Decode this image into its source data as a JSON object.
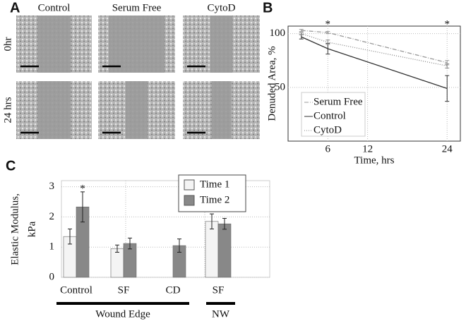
{
  "panels": [
    "A",
    "B",
    "C"
  ],
  "images": {
    "columns": [
      "Control",
      "Serum Free",
      "CytoD"
    ],
    "rows": [
      "0hr",
      "24 hrs"
    ]
  },
  "chart_data": [
    {
      "type": "line",
      "xlabel": "Time, hrs",
      "ylabel": "Denuded Area, %",
      "x": [
        2,
        6,
        24
      ],
      "xlim": [
        0,
        26
      ],
      "xticks": [
        6,
        12,
        24
      ],
      "ylim": [
        0,
        107
      ],
      "yticks": [
        50,
        100
      ],
      "grid": true,
      "legend": "lower left",
      "series": [
        {
          "name": "Serum Free",
          "color": "#999999",
          "dash": "6,2,1,2",
          "values": [
            103,
            101,
            73
          ],
          "errors": [
            1,
            1,
            2
          ]
        },
        {
          "name": "Control",
          "color": "#333333",
          "dash": "",
          "values": [
            97,
            86,
            49
          ],
          "errors": [
            2,
            5,
            12
          ]
        },
        {
          "name": "CytoD",
          "color": "#888888",
          "dash": "1,2",
          "values": [
            100,
            92,
            70
          ],
          "errors": [
            1,
            2,
            2
          ]
        }
      ],
      "annotations": [
        {
          "text": "*",
          "x": 6
        },
        {
          "text": "*",
          "x": 24
        }
      ]
    },
    {
      "type": "bar",
      "ylabel": [
        "Elastic Modulus,",
        "kPa"
      ],
      "categories": [
        "Control",
        "SF",
        "CD",
        "SF"
      ],
      "ylim": [
        0,
        3.2
      ],
      "yticks": [
        0,
        1,
        2,
        3
      ],
      "grid": true,
      "legend": "upper right",
      "series": [
        {
          "name": "Time 1",
          "color": "#f4f4f4",
          "values": [
            1.35,
            0.95,
            null,
            1.85
          ],
          "errors": [
            0.25,
            0.12,
            null,
            0.25
          ]
        },
        {
          "name": "Time 2",
          "color": "#888888",
          "values": [
            2.33,
            1.12,
            1.05,
            1.77
          ],
          "errors": [
            0.5,
            0.18,
            0.22,
            0.18
          ]
        }
      ],
      "groups": [
        "Wound Edge",
        "NW"
      ],
      "annotations": [
        {
          "text": "*"
        }
      ]
    }
  ]
}
